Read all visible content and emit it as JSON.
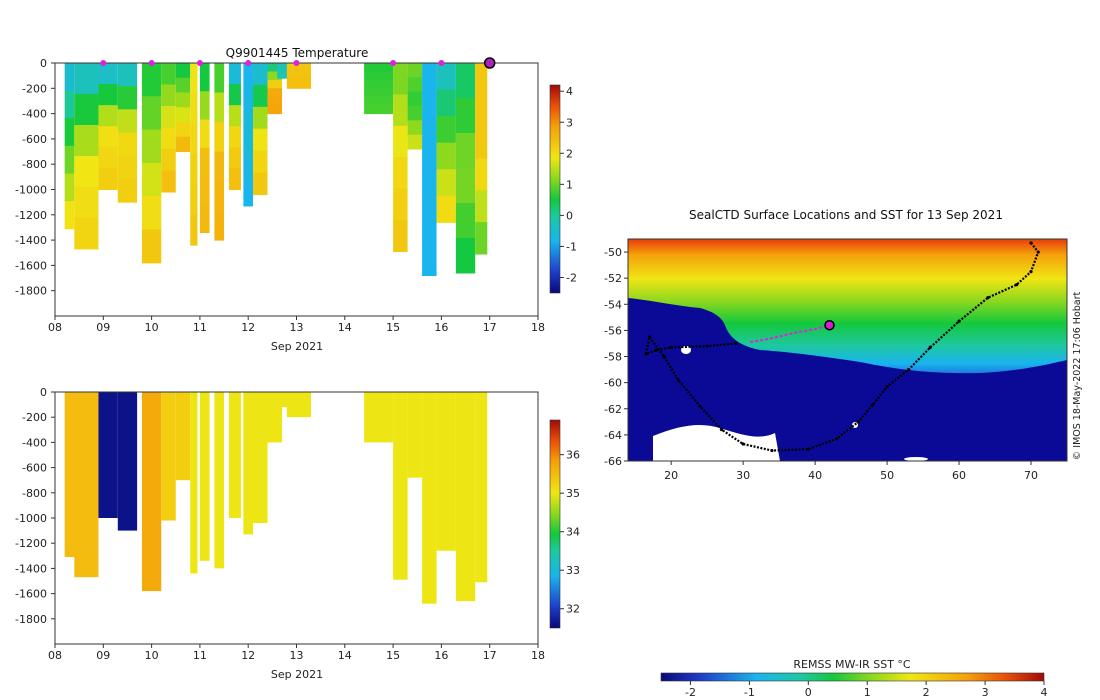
{
  "chart_data": [
    {
      "type": "heatmap",
      "title": "Q9901445  Temperature",
      "xlabel": "Sep 2021",
      "x_ticks": [
        "08",
        "09",
        "10",
        "11",
        "12",
        "13",
        "14",
        "15",
        "16",
        "17",
        "18"
      ],
      "xlim": [
        8,
        18
      ],
      "y_ticks": [
        "0",
        "-200",
        "-400",
        "-600",
        "-800",
        "-1000",
        "-1200",
        "-1400",
        "-1600",
        "-1800"
      ],
      "ylim": [
        -2000,
        0
      ],
      "colorbar_ticks": [
        "4",
        "3",
        "2",
        "1",
        "0",
        "-1",
        "-2"
      ],
      "colorbar_range": [
        -2.5,
        4.2
      ],
      "marker_days": [
        9,
        10,
        11,
        12,
        13,
        15,
        16
      ],
      "current_profile_day": 17,
      "profiles": [
        {
          "day": 8.2,
          "width": 0.2,
          "depth": 1310,
          "surface": -0.5,
          "mid": 0.8,
          "deep": 1.9
        },
        {
          "day": 8.4,
          "width": 0.5,
          "depth": 1470,
          "surface": -0.3,
          "mid": 1.8,
          "deep": 2.1
        },
        {
          "day": 8.9,
          "width": 0.4,
          "depth": 1000,
          "surface": -0.4,
          "mid": 1.9,
          "deep": 2.2
        },
        {
          "day": 9.3,
          "width": 0.4,
          "depth": 1100,
          "surface": -0.3,
          "mid": 2.0,
          "deep": 2.2
        },
        {
          "day": 9.8,
          "width": 0.4,
          "depth": 1580,
          "surface": 0.6,
          "mid": 1.5,
          "deep": 2.3
        },
        {
          "day": 10.2,
          "width": 0.3,
          "depth": 1020,
          "surface": 0.8,
          "mid": 1.9,
          "deep": 2.4
        },
        {
          "day": 10.5,
          "width": 0.3,
          "depth": 700,
          "surface": 0.5,
          "mid": 1.5,
          "deep": 2.5
        },
        {
          "day": 10.8,
          "width": 0.15,
          "depth": 1440,
          "surface": 1.9,
          "mid": 2.1,
          "deep": 2.3
        },
        {
          "day": 11.0,
          "width": 0.2,
          "depth": 1340,
          "surface": 0.5,
          "mid": 2.4,
          "deep": 2.5
        },
        {
          "day": 11.3,
          "width": 0.2,
          "depth": 1400,
          "surface": 0.8,
          "mid": 2.5,
          "deep": 2.6
        },
        {
          "day": 11.6,
          "width": 0.25,
          "depth": 1000,
          "surface": -0.6,
          "mid": 2.0,
          "deep": 2.4
        },
        {
          "day": 11.9,
          "width": 0.2,
          "depth": 1130,
          "surface": -0.8,
          "mid": -0.6,
          "deep": -0.8
        },
        {
          "day": 12.1,
          "width": 0.3,
          "depth": 1040,
          "surface": -0.5,
          "mid": 1.8,
          "deep": 2.3
        },
        {
          "day": 12.4,
          "width": 0.3,
          "depth": 400,
          "surface": 0.2,
          "mid": 2.7,
          "deep": 2.8
        },
        {
          "day": 12.6,
          "width": 0.25,
          "depth": 120,
          "surface": -0.3,
          "mid": -0.2,
          "deep": -0.2
        },
        {
          "day": 12.8,
          "width": 0.5,
          "depth": 200,
          "surface": 2.3,
          "mid": 2.4,
          "deep": 2.4
        },
        {
          "day": 14.4,
          "width": 0.6,
          "depth": 400,
          "surface": 0.6,
          "mid": 0.7,
          "deep": 0.8
        },
        {
          "day": 15.0,
          "width": 0.3,
          "depth": 1490,
          "surface": 1.1,
          "mid": 2.0,
          "deep": 2.3
        },
        {
          "day": 15.3,
          "width": 0.3,
          "depth": 680,
          "surface": 1.0,
          "mid": 0.6,
          "deep": 1.6
        },
        {
          "day": 15.6,
          "width": 0.3,
          "depth": 1680,
          "surface": -0.8,
          "mid": -0.8,
          "deep": -0.8
        },
        {
          "day": 15.9,
          "width": 0.4,
          "depth": 1260,
          "surface": -0.3,
          "mid": 1.0,
          "deep": 2.0
        },
        {
          "day": 16.3,
          "width": 0.4,
          "depth": 1660,
          "surface": 0.3,
          "mid": 1.2,
          "deep": 0.5
        },
        {
          "day": 16.7,
          "width": 0.25,
          "depth": 1510,
          "surface": 2.3,
          "mid": 2.3,
          "deep": 1.0
        }
      ]
    },
    {
      "type": "heatmap",
      "title": "",
      "xlabel": "Sep 2021",
      "x_ticks": [
        "08",
        "09",
        "10",
        "11",
        "12",
        "13",
        "14",
        "15",
        "16",
        "17",
        "18"
      ],
      "xlim": [
        8,
        18
      ],
      "y_ticks": [
        "0",
        "-200",
        "-400",
        "-600",
        "-800",
        "-1000",
        "-1200",
        "-1400",
        "-1600",
        "-1800"
      ],
      "ylim": [
        -2000,
        0
      ],
      "colorbar_ticks": [
        "36",
        "35",
        "34",
        "33",
        "32"
      ],
      "colorbar_range": [
        31.5,
        36.9
      ],
      "profiles": [
        {
          "day": 8.2,
          "width": 0.65,
          "depth": 1310,
          "value": 35.5
        },
        {
          "day": 8.4,
          "width": 0.5,
          "depth": 1470,
          "value": 35.5
        },
        {
          "day": 8.9,
          "width": 0.4,
          "depth": 1000,
          "value": 31.6
        },
        {
          "day": 9.3,
          "width": 0.4,
          "depth": 1100,
          "value": 31.6
        },
        {
          "day": 9.8,
          "width": 0.4,
          "depth": 1580,
          "value": 35.7
        },
        {
          "day": 10.2,
          "width": 0.3,
          "depth": 1020,
          "value": 35.3
        },
        {
          "day": 10.5,
          "width": 0.3,
          "depth": 700,
          "value": 35.3
        },
        {
          "day": 10.8,
          "width": 0.15,
          "depth": 1440,
          "value": 35.0
        },
        {
          "day": 11.0,
          "width": 0.2,
          "depth": 1340,
          "value": 35.0
        },
        {
          "day": 11.3,
          "width": 0.2,
          "depth": 1400,
          "value": 35.0
        },
        {
          "day": 11.6,
          "width": 0.25,
          "depth": 1000,
          "value": 35.0
        },
        {
          "day": 11.9,
          "width": 0.2,
          "depth": 1130,
          "value": 35.0
        },
        {
          "day": 12.1,
          "width": 0.3,
          "depth": 1040,
          "value": 35.0
        },
        {
          "day": 12.4,
          "width": 0.3,
          "depth": 400,
          "value": 35.0
        },
        {
          "day": 12.6,
          "width": 0.25,
          "depth": 120,
          "value": 35.0
        },
        {
          "day": 12.8,
          "width": 0.5,
          "depth": 200,
          "value": 35.0
        },
        {
          "day": 14.4,
          "width": 0.6,
          "depth": 400,
          "value": 35.0
        },
        {
          "day": 15.0,
          "width": 0.3,
          "depth": 1490,
          "value": 35.0
        },
        {
          "day": 15.3,
          "width": 0.3,
          "depth": 680,
          "value": 35.0
        },
        {
          "day": 15.6,
          "width": 0.3,
          "depth": 1680,
          "value": 35.0
        },
        {
          "day": 15.9,
          "width": 0.4,
          "depth": 1260,
          "value": 35.0
        },
        {
          "day": 16.3,
          "width": 0.4,
          "depth": 1660,
          "value": 35.0
        },
        {
          "day": 16.7,
          "width": 0.25,
          "depth": 1510,
          "value": 35.0
        }
      ]
    },
    {
      "type": "heatmap",
      "title": "SealCTD Surface Locations and SST for 13 Sep 2021",
      "x_ticks": [
        "20",
        "30",
        "40",
        "50",
        "60",
        "70"
      ],
      "xlim": [
        14,
        75
      ],
      "y_ticks": [
        "-50",
        "-52",
        "-54",
        "-56",
        "-58",
        "-60",
        "-62",
        "-64",
        "-66"
      ],
      "ylim": [
        -66,
        -49
      ],
      "colorbar_label": "REMSS MW-IR SST °C",
      "colorbar_ticks": [
        "-2",
        "-1",
        "0",
        "1",
        "2",
        "3",
        "4"
      ],
      "colorbar_range": [
        -2.5,
        4
      ],
      "side_label": "© IMOS 18-May-2022 17:06 Hobart",
      "seal_track": [
        [
          70,
          -49.3
        ],
        [
          71,
          -50
        ],
        [
          70,
          -51.5
        ],
        [
          68,
          -52.5
        ],
        [
          64,
          -53.5
        ],
        [
          60,
          -55.3
        ],
        [
          56,
          -57.3
        ],
        [
          53,
          -59
        ],
        [
          50,
          -60.3
        ],
        [
          48,
          -61.7
        ],
        [
          46,
          -63
        ],
        [
          43,
          -64.3
        ],
        [
          39,
          -65.1
        ],
        [
          34,
          -65.2
        ],
        [
          30,
          -64.7
        ],
        [
          27,
          -63.6
        ],
        [
          24,
          -61.8
        ],
        [
          21,
          -59.8
        ],
        [
          19,
          -58
        ],
        [
          17,
          -56.5
        ],
        [
          16.5,
          -57.8
        ],
        [
          18,
          -57.5
        ],
        [
          20,
          -57.3
        ],
        [
          25,
          -57.2
        ],
        [
          29,
          -57
        ]
      ],
      "recent_track": [
        [
          31,
          -56.9
        ],
        [
          34,
          -56.6
        ],
        [
          37,
          -56.2
        ],
        [
          40,
          -55.9
        ],
        [
          42,
          -55.6
        ]
      ],
      "current_location": [
        42,
        -55.6
      ]
    }
  ]
}
